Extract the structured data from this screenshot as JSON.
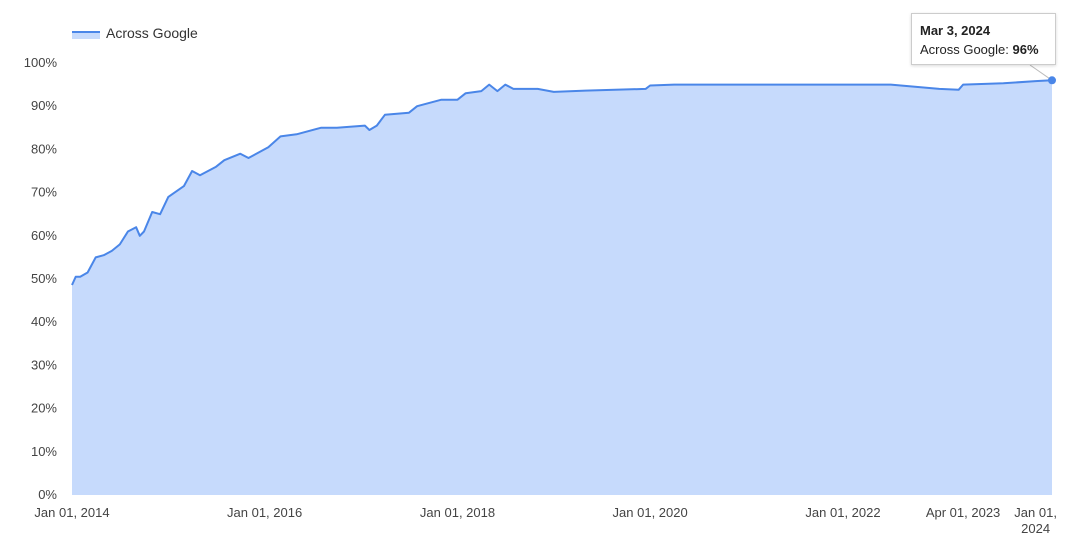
{
  "chart_data": {
    "type": "area",
    "title": "",
    "xlabel": "",
    "ylabel": "",
    "legend": {
      "position": "top-left",
      "entries": [
        "Across Google"
      ]
    },
    "colors": {
      "line": "#4a86e8",
      "fill": "#c6dafc"
    },
    "grid": false,
    "xlim": [
      "2014-01-01",
      "2024-03-03"
    ],
    "ylim": [
      0,
      100
    ],
    "y_ticks": [
      "0%",
      "10%",
      "20%",
      "30%",
      "40%",
      "50%",
      "60%",
      "70%",
      "80%",
      "90%",
      "100%"
    ],
    "x_ticks": [
      {
        "date": "2014-01-01",
        "label": "Jan 01, 2014"
      },
      {
        "date": "2016-01-01",
        "label": "Jan 01, 2016"
      },
      {
        "date": "2018-01-01",
        "label": "Jan 01, 2018"
      },
      {
        "date": "2020-01-01",
        "label": "Jan 01, 2020"
      },
      {
        "date": "2022-01-01",
        "label": "Jan 01, 2022"
      },
      {
        "date": "2023-04-01",
        "label": "Apr 01, 2023"
      },
      {
        "date": "2024-01-01",
        "label": "Jan 01,",
        "label2": "2024"
      }
    ],
    "series": [
      {
        "name": "Across Google",
        "x": [
          "2014-01-01",
          "2014-01-15",
          "2014-02-01",
          "2014-03-01",
          "2014-04-01",
          "2014-05-01",
          "2014-06-01",
          "2014-07-01",
          "2014-08-01",
          "2014-09-01",
          "2014-09-15",
          "2014-10-01",
          "2014-11-01",
          "2014-12-01",
          "2015-01-01",
          "2015-03-01",
          "2015-04-01",
          "2015-05-01",
          "2015-07-01",
          "2015-08-01",
          "2015-10-01",
          "2015-11-01",
          "2016-01-15",
          "2016-03-01",
          "2016-05-01",
          "2016-08-01",
          "2016-10-01",
          "2017-01-15",
          "2017-02-01",
          "2017-03-01",
          "2017-04-01",
          "2017-07-01",
          "2017-08-01",
          "2017-11-01",
          "2018-01-01",
          "2018-02-01",
          "2018-04-01",
          "2018-05-01",
          "2018-06-01",
          "2018-07-01",
          "2018-08-01",
          "2018-11-01",
          "2019-01-01",
          "2019-05-01",
          "2019-12-15",
          "2020-01-01",
          "2020-04-01",
          "2021-01-01",
          "2022-01-01",
          "2022-07-01",
          "2023-01-01",
          "2023-03-15",
          "2023-04-01",
          "2023-09-01",
          "2024-01-01",
          "2024-03-03"
        ],
        "values": [
          48.6,
          50.5,
          50.5,
          51.5,
          55,
          55.5,
          56.5,
          58,
          61,
          62,
          60,
          61,
          65.5,
          65,
          69,
          71.5,
          75,
          74,
          76,
          77.5,
          79,
          78,
          80.5,
          83,
          83.5,
          85,
          85,
          85.5,
          84.5,
          85.5,
          88,
          88.5,
          90,
          91.5,
          91.5,
          93,
          93.5,
          95,
          93.5,
          95,
          94,
          94,
          93.3,
          93.6,
          94,
          94.8,
          95,
          95,
          95,
          95,
          94,
          93.8,
          95,
          95.3,
          95.8,
          96
        ]
      }
    ]
  },
  "tooltip": {
    "date": "Mar 3, 2024",
    "series": "Across Google:",
    "value": "96%"
  }
}
